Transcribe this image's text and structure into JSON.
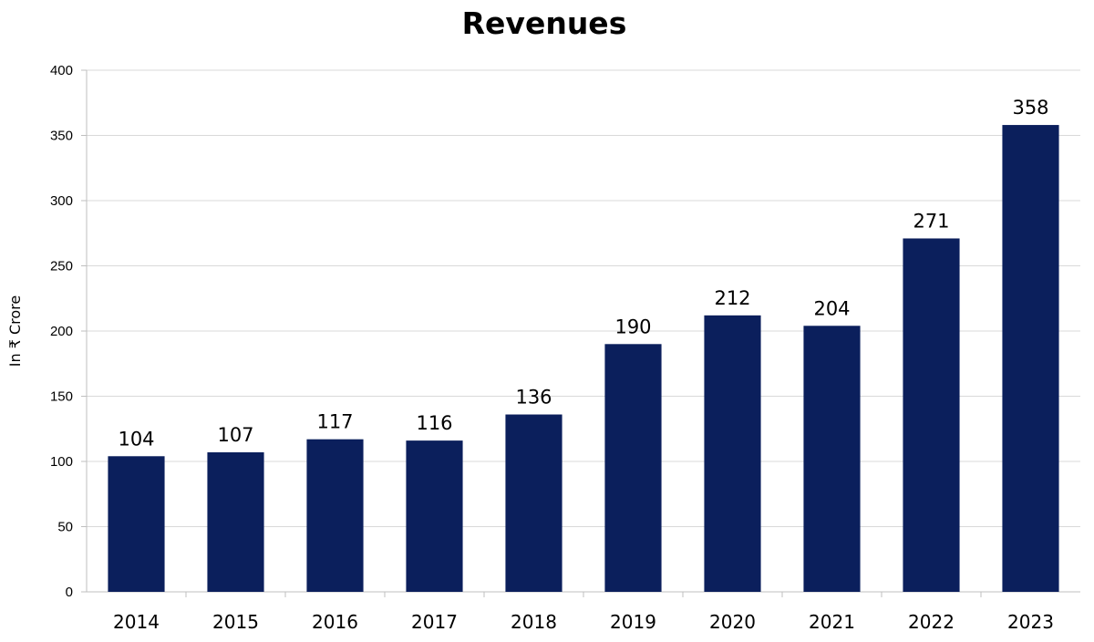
{
  "chart_data": {
    "type": "bar",
    "title": "Revenues",
    "xlabel": "",
    "ylabel": "In ₹ Crore",
    "categories": [
      "2014",
      "2015",
      "2016",
      "2017",
      "2018",
      "2019",
      "2020",
      "2021",
      "2022",
      "2023"
    ],
    "values": [
      104,
      107,
      117,
      116,
      136,
      190,
      212,
      204,
      271,
      358
    ],
    "ylim": [
      0,
      400
    ],
    "yticks": [
      0,
      50,
      100,
      150,
      200,
      250,
      300,
      350,
      400
    ],
    "grid": true,
    "legend": "none",
    "bar_color": "#0b1f5c"
  }
}
